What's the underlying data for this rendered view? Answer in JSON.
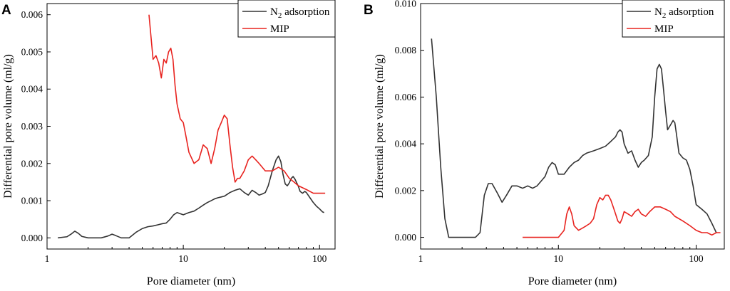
{
  "chart_data": [
    {
      "panel": "A",
      "type": "line",
      "xscale": "log",
      "xlabel": "Pore diameter (nm)",
      "ylabel": "Differential pore volume (ml/g)",
      "xlim": [
        1,
        130
      ],
      "ylim": [
        -0.0003,
        0.0063
      ],
      "xticks": [
        1,
        10,
        100
      ],
      "xtick_labels": [
        "1",
        "10",
        "100"
      ],
      "yticks": [
        0,
        0.001,
        0.002,
        0.003,
        0.004,
        0.005,
        0.006
      ],
      "ytick_labels": [
        "0.000",
        "0.001",
        "0.002",
        "0.003",
        "0.004",
        "0.005",
        "0.006"
      ],
      "legend_position": "top-right",
      "series": [
        {
          "name": "N2 adsorption",
          "legend_main": "N",
          "legend_sub": "2",
          "legend_rest": " adsorption",
          "color": "#333333",
          "x": [
            1.2,
            1.4,
            1.5,
            1.6,
            1.7,
            1.8,
            2.0,
            2.5,
            2.8,
            3.0,
            3.2,
            3.5,
            4.0,
            4.5,
            5.0,
            5.5,
            6.0,
            6.5,
            7.0,
            7.5,
            8.0,
            8.5,
            9.0,
            9.5,
            10,
            11,
            12,
            13,
            14,
            15,
            16,
            17,
            18,
            19,
            20,
            22,
            24,
            26,
            28,
            30,
            32,
            34,
            36,
            38,
            40,
            42,
            45,
            48,
            50,
            52,
            54,
            56,
            58,
            60,
            62,
            64,
            66,
            68,
            70,
            72,
            75,
            78,
            80,
            85,
            90,
            95,
            100,
            105,
            108
          ],
          "values": [
            0.0,
            3e-05,
            0.0001,
            0.00018,
            0.00012,
            4e-05,
            0.0,
            0.0,
            5e-05,
            0.0001,
            6e-05,
            0.0,
            0.0,
            0.00015,
            0.00025,
            0.0003,
            0.00032,
            0.00035,
            0.00038,
            0.0004,
            0.0005,
            0.00062,
            0.00068,
            0.00065,
            0.00062,
            0.00068,
            0.00072,
            0.0008,
            0.00088,
            0.00095,
            0.001,
            0.00105,
            0.00108,
            0.0011,
            0.00112,
            0.00122,
            0.00128,
            0.00132,
            0.00122,
            0.00115,
            0.00128,
            0.00122,
            0.00115,
            0.00118,
            0.00122,
            0.0014,
            0.0018,
            0.0021,
            0.0022,
            0.00205,
            0.0017,
            0.00145,
            0.0014,
            0.00148,
            0.0016,
            0.00165,
            0.00158,
            0.00148,
            0.00138,
            0.00125,
            0.0012,
            0.00125,
            0.00122,
            0.00108,
            0.00095,
            0.00085,
            0.00078,
            0.0007,
            0.00068
          ]
        },
        {
          "name": "MIP",
          "legend_main": "MIP",
          "legend_sub": "",
          "legend_rest": "",
          "color": "#e8231f",
          "x": [
            5.6,
            6.0,
            6.3,
            6.6,
            6.9,
            7.2,
            7.5,
            7.8,
            8.1,
            8.4,
            8.7,
            9.0,
            9.5,
            10,
            10.5,
            11,
            12,
            13,
            14,
            15,
            16,
            17,
            18,
            19,
            20,
            21,
            22,
            23,
            24,
            25,
            26,
            28,
            30,
            32,
            34,
            36,
            40,
            45,
            50,
            55,
            60,
            65,
            70,
            80,
            90,
            100,
            110
          ],
          "values": [
            0.006,
            0.0048,
            0.0049,
            0.0047,
            0.0043,
            0.0048,
            0.0047,
            0.005,
            0.0051,
            0.0048,
            0.0041,
            0.0036,
            0.0032,
            0.0031,
            0.0027,
            0.0023,
            0.002,
            0.0021,
            0.0025,
            0.0024,
            0.002,
            0.0024,
            0.0029,
            0.0031,
            0.0033,
            0.0032,
            0.0025,
            0.0019,
            0.0015,
            0.0016,
            0.0016,
            0.0018,
            0.0021,
            0.0022,
            0.0021,
            0.002,
            0.0018,
            0.0018,
            0.0019,
            0.0018,
            0.0016,
            0.0015,
            0.0014,
            0.0013,
            0.0012,
            0.0012,
            0.0012
          ]
        }
      ]
    },
    {
      "panel": "B",
      "type": "line",
      "xscale": "log",
      "xlabel": "Pore diameter (nm)",
      "ylabel": "Differential pore volume (ml/g)",
      "xlim": [
        1,
        160
      ],
      "ylim": [
        -0.0005,
        0.01
      ],
      "xticks": [
        1,
        10,
        100
      ],
      "xtick_labels": [
        "1",
        "10",
        "100"
      ],
      "yticks": [
        0,
        0.002,
        0.004,
        0.006,
        0.008,
        0.01
      ],
      "ytick_labels": [
        "0.000",
        "0.002",
        "0.004",
        "0.006",
        "0.008",
        "0.010"
      ],
      "legend_position": "top-right",
      "series": [
        {
          "name": "N2 adsorption",
          "legend_main": "N",
          "legend_sub": "2",
          "legend_rest": " adsorption",
          "color": "#333333",
          "x": [
            1.2,
            1.3,
            1.4,
            1.5,
            1.6,
            1.8,
            2.0,
            2.5,
            2.7,
            2.9,
            3.1,
            3.3,
            3.6,
            3.9,
            4.2,
            4.6,
            5,
            5.5,
            6,
            6.5,
            7,
            8,
            8.5,
            9,
            9.5,
            10,
            11,
            12,
            13,
            14,
            15,
            16,
            18,
            20,
            22,
            24,
            26,
            27,
            28,
            29,
            30,
            32,
            34,
            36,
            38,
            40,
            42,
            45,
            48,
            50,
            52,
            54,
            56,
            58,
            60,
            62,
            65,
            68,
            70,
            72,
            75,
            80,
            85,
            90,
            95,
            100,
            110,
            120,
            130,
            140
          ],
          "values": [
            0.0085,
            0.006,
            0.003,
            0.0008,
            0.0,
            0.0,
            0.0,
            0.0,
            0.0002,
            0.0018,
            0.0023,
            0.0023,
            0.0019,
            0.0015,
            0.0018,
            0.0022,
            0.0022,
            0.0021,
            0.0022,
            0.0021,
            0.0022,
            0.0026,
            0.003,
            0.0032,
            0.0031,
            0.0027,
            0.0027,
            0.003,
            0.0032,
            0.0033,
            0.0035,
            0.0036,
            0.0037,
            0.0038,
            0.0039,
            0.0041,
            0.0043,
            0.0045,
            0.0046,
            0.0045,
            0.004,
            0.0036,
            0.0037,
            0.0033,
            0.003,
            0.0032,
            0.0033,
            0.0035,
            0.0043,
            0.006,
            0.0072,
            0.0074,
            0.0072,
            0.0063,
            0.0054,
            0.0046,
            0.0048,
            0.005,
            0.0049,
            0.0044,
            0.0036,
            0.0034,
            0.0033,
            0.0029,
            0.0022,
            0.0014,
            0.0012,
            0.001,
            0.0006,
            0.0002
          ]
        },
        {
          "name": "MIP",
          "legend_main": "MIP",
          "legend_sub": "",
          "legend_rest": "",
          "color": "#e8231f",
          "x": [
            5.5,
            6,
            7,
            8,
            9,
            10,
            11,
            11.5,
            12,
            12.5,
            13,
            14,
            15,
            16,
            17,
            18,
            19,
            20,
            21,
            22,
            23,
            24,
            25,
            26,
            27,
            28,
            29,
            30,
            32,
            34,
            36,
            38,
            40,
            43,
            46,
            50,
            55,
            60,
            65,
            70,
            80,
            90,
            100,
            110,
            120,
            130,
            140,
            150
          ],
          "values": [
            0.0,
            0.0,
            0.0,
            0.0,
            0.0,
            0.0,
            0.0003,
            0.001,
            0.0013,
            0.001,
            0.0005,
            0.0003,
            0.0004,
            0.0005,
            0.0006,
            0.0008,
            0.0014,
            0.0017,
            0.0016,
            0.0018,
            0.0018,
            0.0016,
            0.0013,
            0.001,
            0.0007,
            0.0006,
            0.0008,
            0.0011,
            0.001,
            0.0009,
            0.0011,
            0.0012,
            0.001,
            0.0009,
            0.0011,
            0.0013,
            0.0013,
            0.0012,
            0.0011,
            0.0009,
            0.0007,
            0.0005,
            0.0003,
            0.0002,
            0.0002,
            0.0001,
            0.0002,
            0.0002
          ]
        }
      ]
    }
  ]
}
